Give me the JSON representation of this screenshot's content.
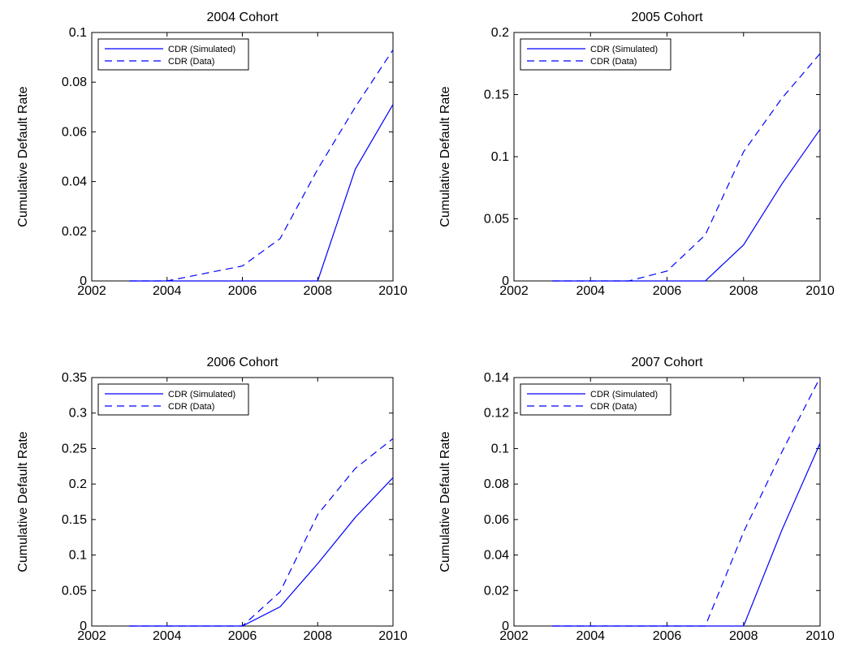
{
  "chart_data": [
    {
      "type": "line",
      "title": "2004 Cohort",
      "xlabel": "",
      "ylabel": "Cumulative Default Rate",
      "xlim": [
        2002,
        2010
      ],
      "ylim": [
        0,
        0.1
      ],
      "xticks": [
        "2002",
        "2004",
        "2006",
        "2008",
        "2010"
      ],
      "yticks": [
        "0",
        "0.02",
        "0.04",
        "0.06",
        "0.08",
        "0.1"
      ],
      "legend_position": "top-left",
      "grid": false,
      "series": [
        {
          "name": "CDR (Simulated)",
          "style": "solid",
          "color": "#0000ff",
          "x": [
            2003,
            2004,
            2005,
            2006,
            2007,
            2008,
            2009,
            2010
          ],
          "y": [
            0,
            0,
            0,
            0,
            0,
            0,
            0.045,
            0.071
          ]
        },
        {
          "name": "CDR (Data)",
          "style": "dashed",
          "color": "#0000ff",
          "x": [
            2003,
            2004,
            2005,
            2006,
            2007,
            2008,
            2009,
            2010
          ],
          "y": [
            0,
            0,
            0.003,
            0.006,
            0.017,
            0.045,
            0.07,
            0.093
          ]
        }
      ]
    },
    {
      "type": "line",
      "title": "2005 Cohort",
      "xlabel": "",
      "ylabel": "Cumulative Default Rate",
      "xlim": [
        2002,
        2010
      ],
      "ylim": [
        0,
        0.2
      ],
      "xticks": [
        "2002",
        "2004",
        "2006",
        "2008",
        "2010"
      ],
      "yticks": [
        "0",
        "0.05",
        "0.1",
        "0.15",
        "0.2"
      ],
      "legend_position": "top-left",
      "grid": false,
      "series": [
        {
          "name": "CDR (Simulated)",
          "style": "solid",
          "color": "#0000ff",
          "x": [
            2003,
            2004,
            2005,
            2006,
            2007,
            2008,
            2009,
            2010
          ],
          "y": [
            0,
            0,
            0,
            0,
            0,
            0.029,
            0.078,
            0.122
          ]
        },
        {
          "name": "CDR (Data)",
          "style": "dashed",
          "color": "#0000ff",
          "x": [
            2003,
            2004,
            2005,
            2006,
            2007,
            2008,
            2009,
            2010
          ],
          "y": [
            0,
            0,
            0,
            0.008,
            0.037,
            0.104,
            0.147,
            0.183
          ]
        }
      ]
    },
    {
      "type": "line",
      "title": "2006 Cohort",
      "xlabel": "",
      "ylabel": "Cumulative Default Rate",
      "xlim": [
        2002,
        2010
      ],
      "ylim": [
        0,
        0.35
      ],
      "xticks": [
        "2002",
        "2004",
        "2006",
        "2008",
        "2010"
      ],
      "yticks": [
        "0",
        "0.05",
        "0.1",
        "0.15",
        "0.2",
        "0.25",
        "0.3",
        "0.35"
      ],
      "legend_position": "top-left",
      "grid": false,
      "series": [
        {
          "name": "CDR (Simulated)",
          "style": "solid",
          "color": "#0000ff",
          "x": [
            2003,
            2004,
            2005,
            2006,
            2007,
            2008,
            2009,
            2010
          ],
          "y": [
            0,
            0,
            0,
            0,
            0.027,
            0.088,
            0.153,
            0.209
          ]
        },
        {
          "name": "CDR (Data)",
          "style": "dashed",
          "color": "#0000ff",
          "x": [
            2003,
            2004,
            2005,
            2006,
            2007,
            2008,
            2009,
            2010
          ],
          "y": [
            0,
            0,
            0,
            0,
            0.048,
            0.157,
            0.222,
            0.264
          ]
        }
      ]
    },
    {
      "type": "line",
      "title": "2007 Cohort",
      "xlabel": "",
      "ylabel": "Cumulative Default Rate",
      "xlim": [
        2002,
        2010
      ],
      "ylim": [
        0,
        0.14
      ],
      "xticks": [
        "2002",
        "2004",
        "2006",
        "2008",
        "2010"
      ],
      "yticks": [
        "0",
        "0.02",
        "0.04",
        "0.06",
        "0.08",
        "0.1",
        "0.12",
        "0.14"
      ],
      "legend_position": "top-left",
      "grid": false,
      "series": [
        {
          "name": "CDR (Simulated)",
          "style": "solid",
          "color": "#0000ff",
          "x": [
            2003,
            2004,
            2005,
            2006,
            2007,
            2008,
            2009,
            2010
          ],
          "y": [
            0,
            0,
            0,
            0,
            0,
            0,
            0.054,
            0.103
          ]
        },
        {
          "name": "CDR (Data)",
          "style": "dashed",
          "color": "#0000ff",
          "x": [
            2003,
            2004,
            2005,
            2006,
            2007,
            2008,
            2009,
            2010
          ],
          "y": [
            0,
            0,
            0,
            0,
            0,
            0.053,
            0.098,
            0.14
          ]
        }
      ]
    }
  ]
}
